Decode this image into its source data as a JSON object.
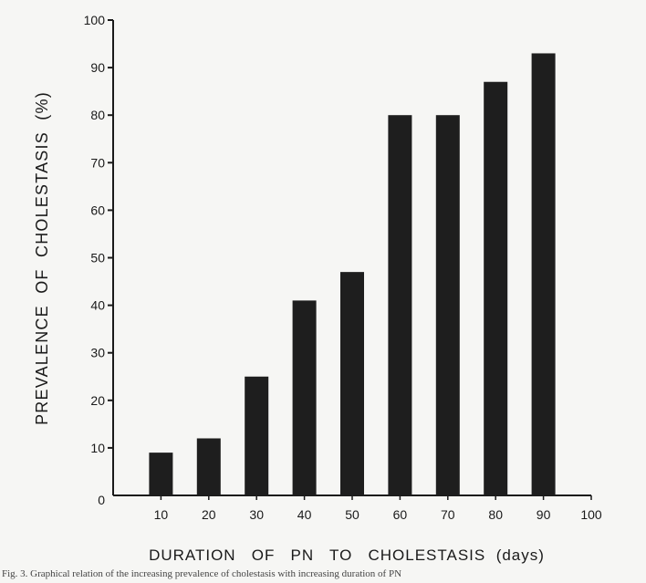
{
  "chart_data": {
    "type": "bar",
    "categories": [
      10,
      20,
      30,
      40,
      50,
      60,
      70,
      80,
      90
    ],
    "values": [
      9,
      12,
      25,
      41,
      47,
      80,
      80,
      87,
      93
    ],
    "xlabel": "DURATION   OF   PN   TO   CHOLESTASIS  (days)",
    "ylabel": "PREVALENCE  OF  CHOLESTASIS  (%)",
    "xlim": [
      0,
      100
    ],
    "ylim": [
      0,
      100
    ],
    "x_ticks": [
      "0",
      "10",
      "20",
      "30",
      "40",
      "50",
      "60",
      "70",
      "80",
      "90",
      "100"
    ],
    "y_ticks": [
      "0",
      "10",
      "20",
      "30",
      "40",
      "50",
      "60",
      "70",
      "80",
      "90",
      "100"
    ],
    "grid": false,
    "bar_color": "#1e1e1e"
  },
  "caption": "Fig. 3.  Graphical relation of the increasing prevalence of cholestasis with increasing duration of PN"
}
